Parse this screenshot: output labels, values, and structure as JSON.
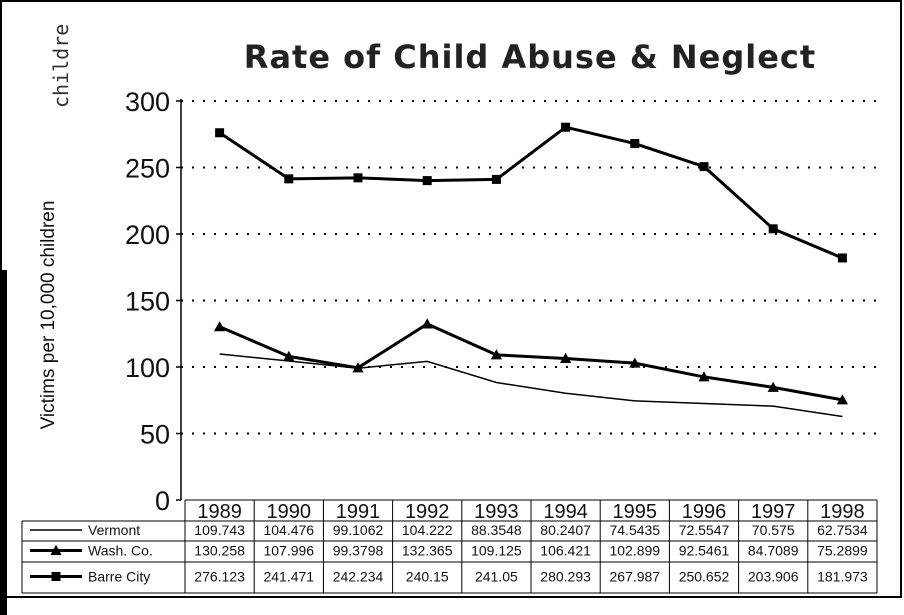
{
  "chart_data": {
    "type": "line",
    "title": "Rate of Child Abuse & Neglect",
    "ylabel": "Victims per 10,000 children",
    "xlabel": "",
    "ylim": [
      0,
      300
    ],
    "yticks": [
      0,
      50,
      100,
      150,
      200,
      250,
      300
    ],
    "grid": true,
    "legend": "table-bottom",
    "categories": [
      "1989",
      "1990",
      "1991",
      "1992",
      "1993",
      "1994",
      "1995",
      "1996",
      "1997",
      "1998"
    ],
    "series": [
      {
        "name": "Vermont",
        "marker": "none",
        "line_weight": "thin",
        "values": [
          109.743,
          104.476,
          99.1062,
          104.222,
          88.3548,
          80.2407,
          74.5435,
          72.5547,
          70.575,
          62.7534
        ],
        "labels": [
          "109.743",
          "104.476",
          "99.1062",
          "104.222",
          "88.3548",
          "80.2407",
          "74.5435",
          "72.5547",
          "70.575",
          "62.7534"
        ]
      },
      {
        "name": "Wash. Co.",
        "marker": "triangle",
        "line_weight": "thick",
        "values": [
          130.258,
          107.996,
          99.3798,
          132.365,
          109.125,
          106.421,
          102.899,
          92.5461,
          84.7089,
          75.2899
        ],
        "labels": [
          "130.258",
          "107.996",
          "99.3798",
          "132.365",
          "109.125",
          "106.421",
          "102.899",
          "92.5461",
          "84.7089",
          "75.2899"
        ]
      },
      {
        "name": "Barre City",
        "marker": "square",
        "line_weight": "thick",
        "values": [
          276.123,
          241.471,
          242.234,
          240.15,
          241.05,
          280.293,
          267.987,
          250.652,
          203.906,
          181.973
        ],
        "labels": [
          "276.123",
          "241.471",
          "242.234",
          "240.15",
          "241.05",
          "280.293",
          "267.987",
          "250.652",
          "203.906",
          "181.973"
        ]
      }
    ],
    "stray_text": "childre"
  }
}
